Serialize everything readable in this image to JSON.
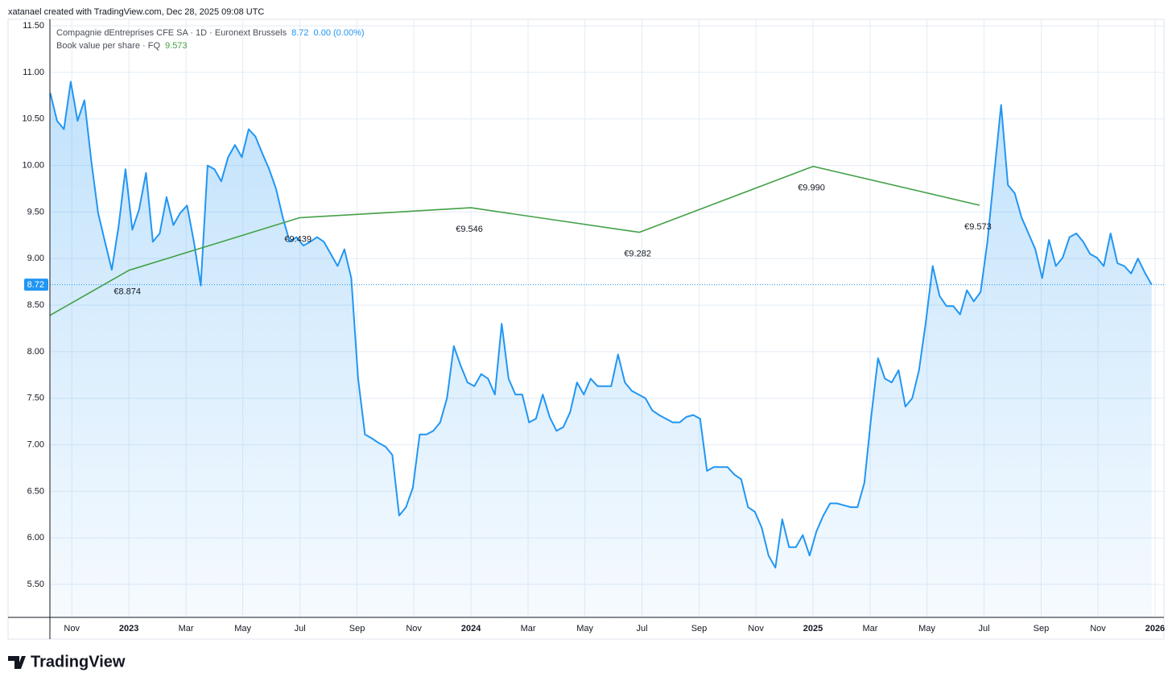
{
  "chart_data": {
    "type": "line",
    "credit": "xatanael created with TradingView.com, Dec 28, 2025 09:08 UTC",
    "change": "0.00 (0.00%)",
    "last_price": 8.72,
    "logo": "TradingView",
    "grid": true,
    "xlim": [
      2022.769,
      2026.026
    ],
    "ylim": [
      5.146,
      11.57
    ],
    "xticks": [
      {
        "value": 2022.833,
        "label": "Nov"
      },
      {
        "value": 2023,
        "label": "2023"
      },
      {
        "value": 2023.167,
        "label": "Mar"
      },
      {
        "value": 2023.333,
        "label": "May"
      },
      {
        "value": 2023.5,
        "label": "Jul"
      },
      {
        "value": 2023.667,
        "label": "Sep"
      },
      {
        "value": 2023.833,
        "label": "Nov"
      },
      {
        "value": 2024,
        "label": "2024"
      },
      {
        "value": 2024.167,
        "label": "Mar"
      },
      {
        "value": 2024.333,
        "label": "May"
      },
      {
        "value": 2024.5,
        "label": "Jul"
      },
      {
        "value": 2024.667,
        "label": "Sep"
      },
      {
        "value": 2024.833,
        "label": "Nov"
      },
      {
        "value": 2025,
        "label": "2025"
      },
      {
        "value": 2025.167,
        "label": "Mar"
      },
      {
        "value": 2025.333,
        "label": "May"
      },
      {
        "value": 2025.5,
        "label": "Jul"
      },
      {
        "value": 2025.667,
        "label": "Sep"
      },
      {
        "value": 2025.833,
        "label": "Nov"
      },
      {
        "value": 2026,
        "label": "2026"
      }
    ],
    "yticks": [
      {
        "value": 5.5,
        "label": "5.50"
      },
      {
        "value": 6,
        "label": "6.00"
      },
      {
        "value": 6.5,
        "label": "6.50"
      },
      {
        "value": 7,
        "label": "7.00"
      },
      {
        "value": 7.5,
        "label": "7.50"
      },
      {
        "value": 8,
        "label": "8.00"
      },
      {
        "value": 8.5,
        "label": "8.50"
      },
      {
        "value": 9,
        "label": "9.00"
      },
      {
        "value": 9.5,
        "label": "9.50"
      },
      {
        "value": 10,
        "label": "10.00"
      },
      {
        "value": 10.5,
        "label": "10.50"
      },
      {
        "value": 11,
        "label": "11.00"
      },
      {
        "value": 11.5,
        "label": "11.50"
      }
    ],
    "series": [
      {
        "name": "Compagnie dEntreprises CFE SA · 1D · Euronext Brussels",
        "color": "#2196f3",
        "fill": true,
        "x": [
          2022.77,
          2022.79,
          2022.81,
          2022.83,
          2022.85,
          2022.87,
          2022.89,
          2022.91,
          2022.93,
          2022.95,
          2022.97,
          2022.99,
          2023.01,
          2023.03,
          2023.05,
          2023.07,
          2023.09,
          2023.11,
          2023.13,
          2023.15,
          2023.17,
          2023.19,
          2023.21,
          2023.23,
          2023.25,
          2023.27,
          2023.29,
          2023.31,
          2023.33,
          2023.35,
          2023.37,
          2023.39,
          2023.41,
          2023.43,
          2023.45,
          2023.47,
          2023.49,
          2023.51,
          2023.53,
          2023.55,
          2023.57,
          2023.59,
          2023.61,
          2023.63,
          2023.65,
          2023.67,
          2023.69,
          2023.71,
          2023.73,
          2023.75,
          2023.77,
          2023.79,
          2023.81,
          2023.83,
          2023.85,
          2023.87,
          2023.89,
          2023.91,
          2023.93,
          2023.95,
          2023.97,
          2023.99,
          2024.01,
          2024.03,
          2024.05,
          2024.07,
          2024.09,
          2024.11,
          2024.13,
          2024.15,
          2024.17,
          2024.19,
          2024.21,
          2024.23,
          2024.25,
          2024.27,
          2024.29,
          2024.31,
          2024.33,
          2024.35,
          2024.37,
          2024.39,
          2024.41,
          2024.43,
          2024.45,
          2024.47,
          2024.49,
          2024.51,
          2024.53,
          2024.55,
          2024.57,
          2024.59,
          2024.61,
          2024.63,
          2024.65,
          2024.67,
          2024.69,
          2024.71,
          2024.73,
          2024.75,
          2024.77,
          2024.79,
          2024.81,
          2024.83,
          2024.85,
          2024.87,
          2024.89,
          2024.91,
          2024.93,
          2024.95,
          2024.97,
          2024.99,
          2025.01,
          2025.03,
          2025.05,
          2025.07,
          2025.09,
          2025.11,
          2025.13,
          2025.15,
          2025.17,
          2025.19,
          2025.21,
          2025.23,
          2025.25,
          2025.27,
          2025.29,
          2025.31,
          2025.33,
          2025.35,
          2025.37,
          2025.39,
          2025.41,
          2025.43,
          2025.45,
          2025.47,
          2025.49,
          2025.51,
          2025.53,
          2025.55,
          2025.57,
          2025.59,
          2025.61,
          2025.63,
          2025.65,
          2025.67,
          2025.69,
          2025.71,
          2025.73,
          2025.75,
          2025.77,
          2025.79,
          2025.81,
          2025.83,
          2025.85,
          2025.87,
          2025.89,
          2025.91,
          2025.93,
          2025.95,
          2025.97,
          2025.99
        ],
        "values": [
          10.78,
          10.48,
          10.39,
          10.9,
          10.48,
          10.7,
          10.05,
          9.49,
          9.18,
          8.88,
          9.35,
          9.96,
          9.31,
          9.53,
          9.92,
          9.18,
          9.27,
          9.66,
          9.36,
          9.49,
          9.57,
          9.18,
          8.71,
          10.0,
          9.96,
          9.83,
          10.09,
          10.22,
          10.09,
          10.39,
          10.31,
          10.13,
          9.96,
          9.75,
          9.44,
          9.18,
          9.23,
          9.14,
          9.18,
          9.23,
          9.18,
          9.05,
          8.92,
          9.1,
          8.79,
          7.71,
          7.11,
          7.07,
          7.02,
          6.98,
          6.89,
          6.24,
          6.33,
          6.54,
          7.11,
          7.11,
          7.15,
          7.24,
          7.5,
          8.06,
          7.85,
          7.67,
          7.63,
          7.76,
          7.71,
          7.54,
          8.3,
          7.71,
          7.54,
          7.54,
          7.24,
          7.28,
          7.54,
          7.3,
          7.15,
          7.19,
          7.35,
          7.67,
          7.54,
          7.71,
          7.63,
          7.63,
          7.63,
          7.97,
          7.67,
          7.58,
          7.54,
          7.5,
          7.37,
          7.32,
          7.28,
          7.24,
          7.24,
          7.3,
          7.32,
          7.28,
          6.72,
          6.76,
          6.76,
          6.76,
          6.68,
          6.63,
          6.33,
          6.28,
          6.11,
          5.81,
          5.68,
          6.2,
          5.9,
          5.9,
          6.03,
          5.81,
          6.07,
          6.24,
          6.37,
          6.37,
          6.35,
          6.33,
          6.33,
          6.59,
          7.3,
          7.93,
          7.71,
          7.67,
          7.8,
          7.41,
          7.5,
          7.8,
          8.32,
          8.92,
          8.6,
          8.49,
          8.49,
          8.4,
          8.66,
          8.54,
          8.64,
          9.18,
          9.92,
          10.65,
          9.79,
          9.7,
          9.44,
          9.27,
          9.1,
          8.79,
          9.2,
          8.92,
          9.01,
          9.23,
          9.27,
          9.18,
          9.05,
          9.01,
          8.92,
          9.27,
          8.95,
          8.92,
          8.84,
          9.0,
          8.85,
          8.72
        ]
      },
      {
        "name": "Book value per share · FQ",
        "color": "#43a047",
        "legend_value": 9.573,
        "x": [
          2022.769,
          2023.0,
          2023.499,
          2024.0,
          2024.492,
          2025.0,
          2025.487
        ],
        "values": [
          8.39,
          8.874,
          9.439,
          9.546,
          9.282,
          9.99,
          9.573
        ],
        "value_labels": [
          null,
          "€8.874",
          "€9.439",
          "€9.546",
          "€9.282",
          "€9.990",
          "€9.573"
        ]
      }
    ]
  }
}
